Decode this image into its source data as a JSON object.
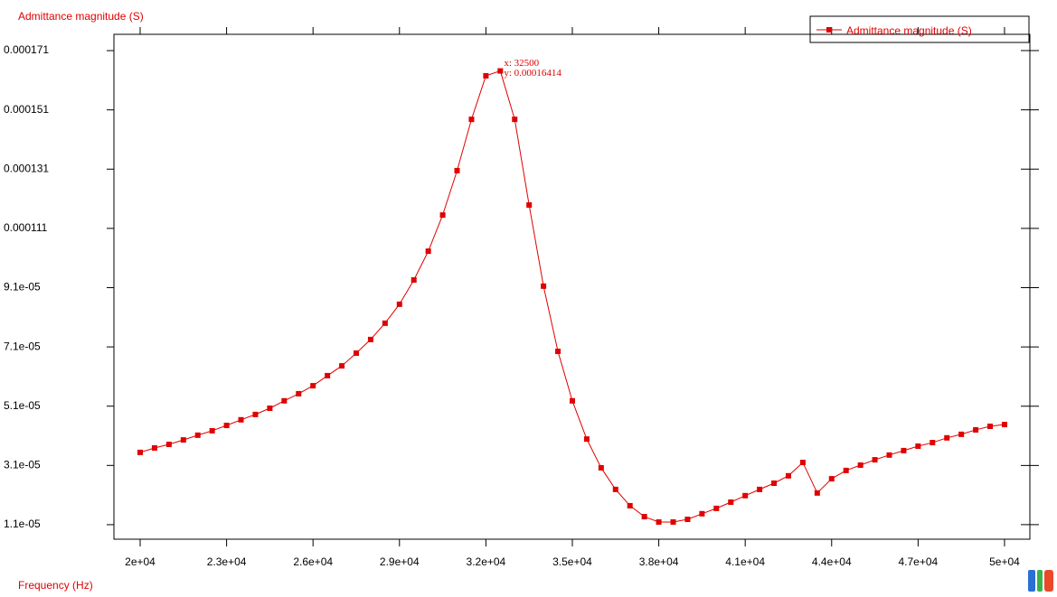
{
  "chart_data": {
    "type": "line",
    "ylabel": "Admittance magnitude (S)",
    "xlabel": "Frequency (Hz)",
    "legend": "upper right",
    "xlim": [
      19090,
      50880
    ],
    "ylim": [
      6.1e-06,
      0.0001765
    ],
    "xticks": [
      {
        "value": 20000,
        "label": "2e+04"
      },
      {
        "value": 23000,
        "label": "2.3e+04"
      },
      {
        "value": 26000,
        "label": "2.6e+04"
      },
      {
        "value": 29000,
        "label": "2.9e+04"
      },
      {
        "value": 32000,
        "label": "3.2e+04"
      },
      {
        "value": 35000,
        "label": "3.5e+04"
      },
      {
        "value": 38000,
        "label": "3.8e+04"
      },
      {
        "value": 41000,
        "label": "4.1e+04"
      },
      {
        "value": 44000,
        "label": "4.4e+04"
      },
      {
        "value": 47000,
        "label": "4.7e+04"
      },
      {
        "value": 50000,
        "label": "5e+04"
      }
    ],
    "yticks": [
      {
        "value": 1.1e-05,
        "label": "1.1e-05"
      },
      {
        "value": 3.1e-05,
        "label": "3.1e-05"
      },
      {
        "value": 5.1e-05,
        "label": "5.1e-05"
      },
      {
        "value": 7.1e-05,
        "label": "7.1e-05"
      },
      {
        "value": 9.1e-05,
        "label": "9.1e-05"
      },
      0.000111,
      0.000131,
      0.000151,
      0.000171
    ],
    "x": [
      20000,
      20500,
      21000,
      21500,
      22000,
      22500,
      23000,
      23500,
      24000,
      24500,
      25000,
      25500,
      26000,
      26500,
      27000,
      27500,
      28000,
      28500,
      29000,
      29500,
      30000,
      30500,
      31000,
      31500,
      32000,
      32500,
      33000,
      33500,
      34000,
      34500,
      35000,
      35500,
      36000,
      36500,
      37000,
      37500,
      38000,
      38500,
      39000,
      39500,
      40000,
      40500,
      41000,
      41500,
      42000,
      42500,
      43000,
      43500,
      44000,
      44500,
      45000,
      45500,
      46000,
      46500,
      47000,
      47500,
      48000,
      48500,
      49000,
      49500,
      50000
    ],
    "series": [
      {
        "name": "Admittance magnitude (S)",
        "color": "#e00000",
        "values": [
          3.54e-05,
          3.69e-05,
          3.81e-05,
          3.96e-05,
          4.12e-05,
          4.27e-05,
          4.45e-05,
          4.64e-05,
          4.82e-05,
          5.03e-05,
          5.28e-05,
          5.52e-05,
          5.79e-05,
          6.13e-05,
          6.46e-05,
          6.89e-05,
          7.35e-05,
          7.9e-05,
          8.54e-05,
          9.36e-05,
          0.0001033,
          0.0001155,
          0.0001305,
          0.0001478,
          0.0001625,
          0.00016414,
          0.0001478,
          0.0001189,
          9.15e-05,
          6.95e-05,
          5.28e-05,
          3.99e-05,
          3.02e-05,
          2.29e-05,
          1.74e-05,
          1.37e-05,
          1.19e-05,
          1.19e-05,
          1.28e-05,
          1.47e-05,
          1.65e-05,
          1.86e-05,
          2.08e-05,
          2.29e-05,
          2.5e-05,
          2.75e-05,
          3.2e-05,
          2.17e-05,
          2.65e-05,
          2.93e-05,
          3.11e-05,
          3.29e-05,
          3.45e-05,
          3.6e-05,
          3.75e-05,
          3.87e-05,
          4.03e-05,
          4.15e-05,
          4.3e-05,
          4.42e-05,
          4.48e-05
        ]
      }
    ],
    "annotation": {
      "x": 32500,
      "y": 0.00016414,
      "lines": [
        "x: 32500",
        "y: 0.00016414"
      ]
    }
  }
}
